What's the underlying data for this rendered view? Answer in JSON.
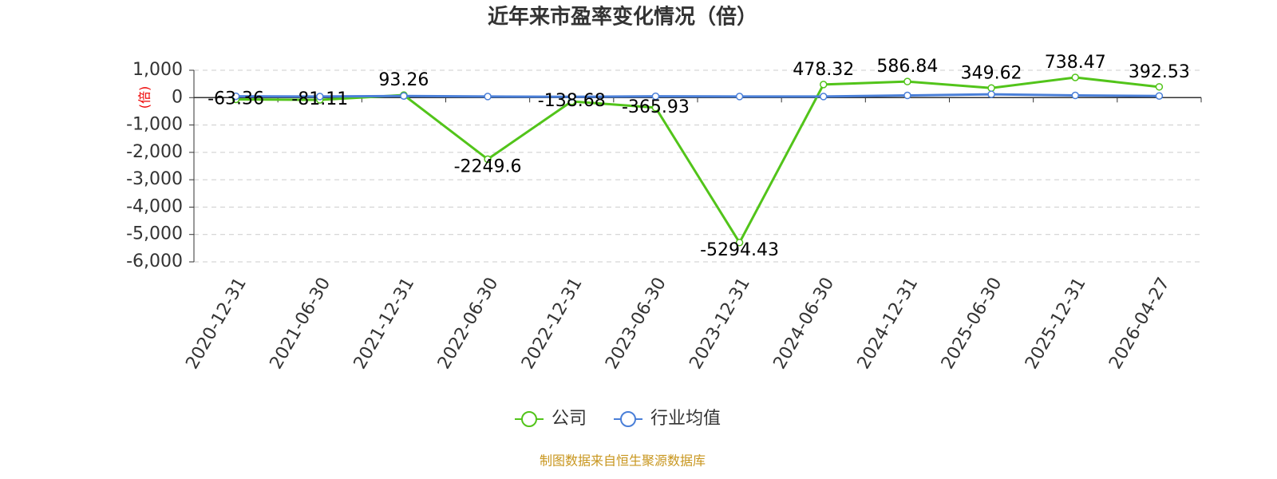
{
  "chart_data": {
    "type": "line",
    "title": "近年来市盈率变化情况（倍）",
    "y_label": "(倍)",
    "categories": [
      "2020-12-31",
      "2021-06-30",
      "2021-12-31",
      "2022-06-30",
      "2022-12-31",
      "2023-06-30",
      "2023-12-31",
      "2024-06-30",
      "2024-12-31",
      "2025-06-30",
      "2025-12-31",
      "2026-04-27"
    ],
    "series": [
      {
        "name": "公司",
        "color": "#52c41a",
        "values": [
          -63.36,
          -81.11,
          93.26,
          -2249.6,
          -138.68,
          -365.93,
          -5294.43,
          478.32,
          586.84,
          349.62,
          738.47,
          392.53
        ]
      },
      {
        "name": "行业均值",
        "color": "#4a7fd8",
        "values": [
          50,
          40,
          60,
          40,
          30,
          50,
          40,
          40,
          80,
          120,
          80,
          60
        ]
      }
    ],
    "ylim": [
      -6000,
      1000
    ],
    "yticks": [
      {
        "value": 1000,
        "label": "1,000"
      },
      0,
      {
        "value": -1000,
        "label": "-1,000"
      },
      {
        "value": -2000,
        "label": "-2,000"
      },
      {
        "value": -3000,
        "label": "-3,000"
      },
      {
        "value": -4000,
        "label": "-4,000"
      },
      {
        "value": -5000,
        "label": "-5,000"
      },
      {
        "value": -6000,
        "label": "-6,000"
      }
    ],
    "grid": true,
    "legend": "bottom",
    "source": "制图数据来自恒生聚源数据库"
  }
}
